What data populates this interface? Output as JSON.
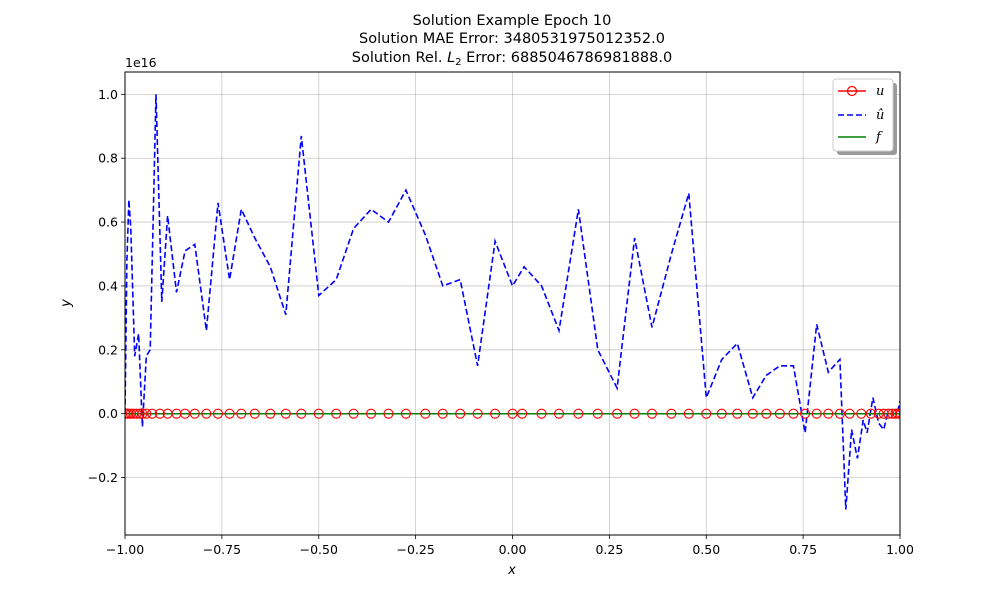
{
  "chart_data": {
    "type": "line",
    "title_lines": [
      "Solution Example Epoch 10",
      "Solution MAE Error: 3480531975012352.0",
      "Solution Rel. L2 Error: 6885046786981888.0"
    ],
    "title_l2_parts": {
      "before": "Solution Rel. ",
      "sym": "L",
      "sub": "2",
      "after": " Error: 6885046786981888.0"
    },
    "xlabel": "x",
    "ylabel": "y",
    "offset_text": "1e16",
    "xlim": [
      -1.0,
      1.0
    ],
    "ylim": [
      -0.38,
      1.07
    ],
    "y_scale_note": "values in units of 1e16",
    "xticks": [
      -1.0,
      -0.75,
      -0.5,
      -0.25,
      0.0,
      0.25,
      0.5,
      0.75,
      1.0
    ],
    "xtick_labels": [
      "−1.00",
      "−0.75",
      "−0.50",
      "−0.25",
      "0.00",
      "0.25",
      "0.50",
      "0.75",
      "1.00"
    ],
    "yticks": [
      -0.2,
      0.0,
      0.2,
      0.4,
      0.6,
      0.8,
      1.0
    ],
    "ytick_labels": [
      "−0.2",
      "0.0",
      "0.2",
      "0.4",
      "0.6",
      "0.8",
      "1.0"
    ],
    "grid": true,
    "legend_position": "top-right",
    "series": [
      {
        "name": "u",
        "style": "solid-circle-markers",
        "color": "#ff0000",
        "x": [
          -1.0,
          -0.995,
          -0.99,
          -0.985,
          -0.978,
          -0.97,
          -0.962,
          -0.955,
          -0.945,
          -0.93,
          -0.91,
          -0.89,
          -0.867,
          -0.845,
          -0.82,
          -0.79,
          -0.76,
          -0.73,
          -0.7,
          -0.665,
          -0.625,
          -0.585,
          -0.545,
          -0.5,
          -0.455,
          -0.41,
          -0.365,
          -0.32,
          -0.275,
          -0.225,
          -0.18,
          -0.135,
          -0.09,
          -0.045,
          0.0,
          0.025,
          0.075,
          0.12,
          0.17,
          0.22,
          0.27,
          0.315,
          0.36,
          0.41,
          0.455,
          0.5,
          0.54,
          0.58,
          0.62,
          0.655,
          0.69,
          0.725,
          0.755,
          0.785,
          0.815,
          0.845,
          0.87,
          0.9,
          0.925,
          0.945,
          0.958,
          0.97,
          0.98,
          0.988,
          0.994,
          1.0
        ],
        "y": [
          0,
          0,
          0,
          0,
          0,
          0,
          0,
          0,
          0,
          0,
          0,
          0,
          0,
          0,
          0,
          0,
          0,
          0,
          0,
          0,
          0,
          0,
          0,
          0,
          0,
          0,
          0,
          0,
          0,
          0,
          0,
          0,
          0,
          0,
          0,
          0,
          0,
          0,
          0,
          0,
          0,
          0,
          0,
          0,
          0,
          0,
          0,
          0,
          0,
          0,
          0,
          0,
          0,
          0,
          0,
          0,
          0,
          0,
          0,
          0,
          0,
          0,
          0,
          0,
          0,
          0
        ]
      },
      {
        "name": "û",
        "style": "dashed",
        "color": "#0000ff",
        "x": [
          -1.0,
          -0.995,
          -0.99,
          -0.985,
          -0.975,
          -0.965,
          -0.955,
          -0.945,
          -0.935,
          -0.92,
          -0.905,
          -0.89,
          -0.867,
          -0.845,
          -0.82,
          -0.79,
          -0.76,
          -0.73,
          -0.7,
          -0.665,
          -0.625,
          -0.585,
          -0.545,
          -0.5,
          -0.455,
          -0.41,
          -0.365,
          -0.32,
          -0.275,
          -0.225,
          -0.18,
          -0.135,
          -0.09,
          -0.045,
          0.0,
          0.03,
          0.075,
          0.12,
          0.17,
          0.22,
          0.27,
          0.315,
          0.36,
          0.41,
          0.455,
          0.5,
          0.54,
          0.58,
          0.62,
          0.655,
          0.69,
          0.725,
          0.755,
          0.785,
          0.815,
          0.845,
          0.86,
          0.875,
          0.89,
          0.905,
          0.915,
          0.93,
          0.945,
          0.958,
          0.968,
          0.978,
          0.987,
          0.993,
          1.0
        ],
        "y": [
          0.0,
          0.48,
          0.67,
          0.58,
          0.18,
          0.25,
          -0.04,
          0.18,
          0.2,
          1.0,
          0.35,
          0.62,
          0.38,
          0.51,
          0.53,
          0.26,
          0.66,
          0.42,
          0.64,
          0.55,
          0.46,
          0.31,
          0.87,
          0.37,
          0.42,
          0.58,
          0.64,
          0.6,
          0.7,
          0.56,
          0.4,
          0.42,
          0.15,
          0.54,
          0.4,
          0.46,
          0.4,
          0.26,
          0.64,
          0.2,
          0.08,
          0.55,
          0.27,
          0.5,
          0.69,
          0.05,
          0.17,
          0.22,
          0.05,
          0.12,
          0.15,
          0.15,
          -0.06,
          0.28,
          0.13,
          0.17,
          -0.3,
          -0.05,
          -0.14,
          -0.02,
          -0.06,
          0.05,
          -0.03,
          -0.05,
          0.0,
          0.0,
          0.0,
          0.0,
          0.04
        ]
      },
      {
        "name": "f",
        "style": "solid",
        "color": "#008000",
        "x": [
          -1.0,
          1.0
        ],
        "y": [
          0.0,
          0.0
        ]
      }
    ]
  }
}
